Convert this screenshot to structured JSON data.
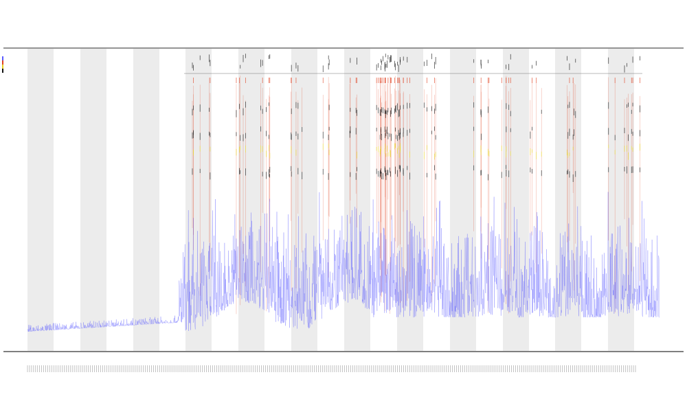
{
  "chart_data": {
    "type": "line",
    "title_lines": [
      "",
      "",
      ""
    ],
    "xlabel": "",
    "ylabel": "",
    "grid": false,
    "shaded_bands": true,
    "x_tick_count": 300,
    "series": [
      {
        "key": "intensity",
        "color": "#5a5aff",
        "baseline_start": 0.04,
        "baseline_end": 0.05,
        "noise_level": 0.35
      },
      {
        "key": "track_red",
        "color": "#e04020"
      },
      {
        "key": "track_yellow",
        "color": "#e8d020"
      },
      {
        "key": "track_black",
        "color": "#111111"
      }
    ],
    "legend": [
      {
        "label": "",
        "color": "#5a5aff"
      },
      {
        "label": "",
        "color": "#e04020"
      },
      {
        "label": "",
        "color": "#e8d020"
      },
      {
        "label": "",
        "color": "#111111"
      }
    ],
    "tracks": [
      {
        "label": ""
      },
      {
        "label": ""
      }
    ]
  }
}
